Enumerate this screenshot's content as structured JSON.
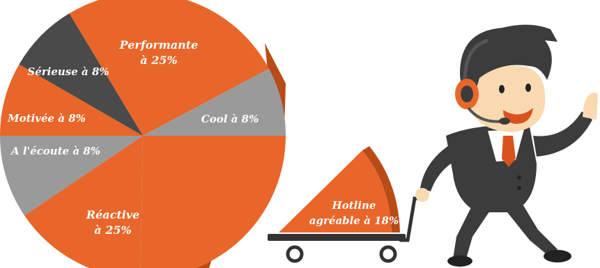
{
  "chart_data": {
    "type": "pie",
    "title": "",
    "slices": [
      {
        "label_lines": [
          "Performante",
          "à 25%"
        ],
        "value": 25,
        "color": "#E8662A"
      },
      {
        "label_lines": [
          "Cool à 8%"
        ],
        "value": 8,
        "color": "#9A9A9A"
      },
      {
        "label_lines": [
          "Réactive",
          "à 25%"
        ],
        "value": 25,
        "color": "#E8662A"
      },
      {
        "label_lines": [
          "A l'écoute à 8%"
        ],
        "value": 8,
        "color": "#9A9A9A"
      },
      {
        "label_lines": [
          "Motivée à 8%"
        ],
        "value": 8,
        "color": "#E8662A"
      },
      {
        "label_lines": [
          "Sérieuse à 8%"
        ],
        "value": 8,
        "color": "#4A4A4A"
      },
      {
        "label_lines": [
          "Hotline",
          "agréable à 18%"
        ],
        "value": 18,
        "color": "#E8662A"
      }
    ],
    "colors": {
      "orange": "#E8662A",
      "orange_dark": "#B94B17",
      "grey": "#9A9A9A",
      "dark": "#4A4A4A"
    },
    "legend": "none",
    "illustration": "cartoon hotline agent pulling a cart carrying the detached slice"
  }
}
